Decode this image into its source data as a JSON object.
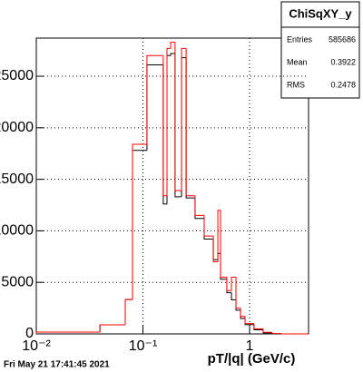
{
  "chart_data": {
    "type": "histogram",
    "bins": [
      0.01,
      0.0395,
      0.0682,
      0.0798,
      0.109,
      0.155,
      0.168,
      0.182,
      0.2,
      0.23,
      0.254,
      0.308,
      0.375,
      0.457,
      0.504,
      0.534,
      0.612,
      0.676,
      0.745,
      0.822,
      0.906,
      1.1,
      1.34,
      1.63,
      1.99,
      2.42,
      3.57
    ],
    "series": [
      {
        "color": "#000000",
        "values": [
          175,
          880,
          3330,
          17800,
          26100,
          12600,
          27000,
          27200,
          13300,
          26800,
          13200,
          11200,
          9200,
          7200,
          7800,
          5300,
          4000,
          3300,
          2300,
          1500,
          900,
          400,
          100,
          20,
          0,
          0
        ]
      },
      {
        "color": "#ff0000",
        "values": [
          175,
          880,
          3330,
          18400,
          27000,
          13400,
          27700,
          28300,
          13900,
          27700,
          13400,
          11500,
          9500,
          7000,
          12000,
          5500,
          4200,
          5500,
          2500,
          1700,
          1000,
          500,
          150,
          30,
          0,
          0
        ]
      }
    ],
    "xlog": true,
    "xlim": [
      0.01,
      3.57
    ],
    "xticks": [
      {
        "value": 0.01,
        "label": "10⁻²"
      },
      {
        "value": 0.1,
        "label": "10⁻¹"
      },
      1
    ],
    "ylim": [
      0,
      28700
    ],
    "yticks": [
      0,
      5000,
      10000,
      15000,
      20000,
      25000
    ],
    "grid": true,
    "xlabel": "pT/|q| (GeV/c)",
    "stats": {
      "title": "ChiSqXY_y",
      "rows": [
        [
          "Entries",
          "585686"
        ],
        [
          "Mean",
          "0.3922"
        ],
        [
          "RMS",
          "0.2478"
        ]
      ]
    },
    "timestamp": "Fri May 21 17:41:45 2021"
  }
}
